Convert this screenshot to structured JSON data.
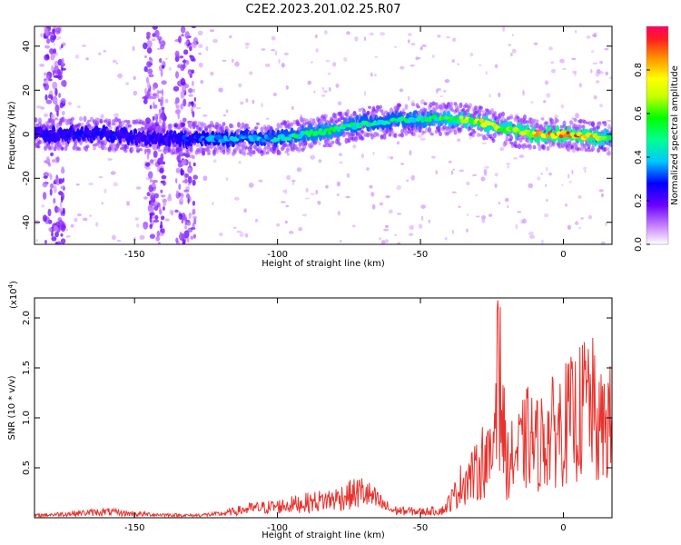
{
  "title": "C2E2.2023.201.02.25.R07",
  "colors": {
    "signal": "#e8322d",
    "axis": "#000000",
    "background": "#ffffff"
  },
  "chart_data": [
    {
      "type": "heatmap",
      "xlabel": "Height of straight line (km)",
      "ylabel": "Frequency (Hz)",
      "xlim": [
        -185,
        17
      ],
      "ylim": [
        -50,
        49
      ],
      "xticks": [
        -150,
        -100,
        -50,
        0
      ],
      "yticks": [
        -40,
        -20,
        0,
        20,
        40
      ],
      "colormap": "rainbow",
      "colorbar": {
        "label": "Normalized spectral amplitude",
        "range": [
          0,
          1
        ],
        "ticks": [
          "0.0",
          "0.2",
          "0.4",
          "0.6",
          "0.8"
        ],
        "tick_values": [
          0.0,
          0.2,
          0.4,
          0.6,
          0.8
        ]
      },
      "ridge": {
        "x": [
          -185,
          -160,
          -140,
          -120,
          -100,
          -90,
          -80,
          -70,
          -60,
          -50,
          -40,
          -30,
          -20,
          -10,
          0,
          10,
          17
        ],
        "frequency_hz": [
          0,
          0,
          -2,
          -2,
          -2,
          0,
          2,
          5,
          6,
          7,
          7,
          6,
          2,
          0,
          0,
          -1,
          -2
        ],
        "amplitude": [
          0.25,
          0.3,
          0.25,
          0.4,
          0.45,
          0.55,
          0.6,
          0.5,
          0.5,
          0.55,
          0.65,
          0.8,
          0.75,
          0.9,
          0.95,
          0.9,
          0.6
        ]
      },
      "noise_bands_x": [
        -178,
        -143,
        -132
      ]
    },
    {
      "type": "line",
      "xlabel": "Height of straight line (km)",
      "ylabel": "SNR (10 * v/v)",
      "y_multiplier_label": "(x10",
      "y_multiplier_exponent": "4",
      "y_multiplier_close": ")",
      "xlim": [
        -185,
        17
      ],
      "ylim": [
        0,
        2.2
      ],
      "xticks": [
        -150,
        -100,
        -50,
        0
      ],
      "yticks": [
        0.5,
        1.0,
        1.5,
        2.0
      ],
      "series": [
        {
          "x": [
            -185,
            -170,
            -160,
            -150,
            -140,
            -130,
            -120,
            -110,
            -100,
            -90,
            -80,
            -75,
            -70,
            -65,
            -60,
            -50,
            -42,
            -38,
            -35,
            -30,
            -28,
            -25,
            -23,
            -20,
            -15,
            -12,
            -10,
            -5,
            0,
            3,
            5,
            7,
            8,
            10,
            12,
            15,
            17
          ],
          "y": [
            0.03,
            0.06,
            0.08,
            0.05,
            0.04,
            0.03,
            0.05,
            0.12,
            0.15,
            0.2,
            0.25,
            0.3,
            0.35,
            0.22,
            0.1,
            0.08,
            0.1,
            0.3,
            0.5,
            0.6,
            0.8,
            0.7,
            2.2,
            0.7,
            0.9,
            1.1,
            0.95,
            1.1,
            1.25,
            1.3,
            1.35,
            1.45,
            1.6,
            1.5,
            1.1,
            1.3,
            1.2
          ]
        }
      ]
    }
  ]
}
